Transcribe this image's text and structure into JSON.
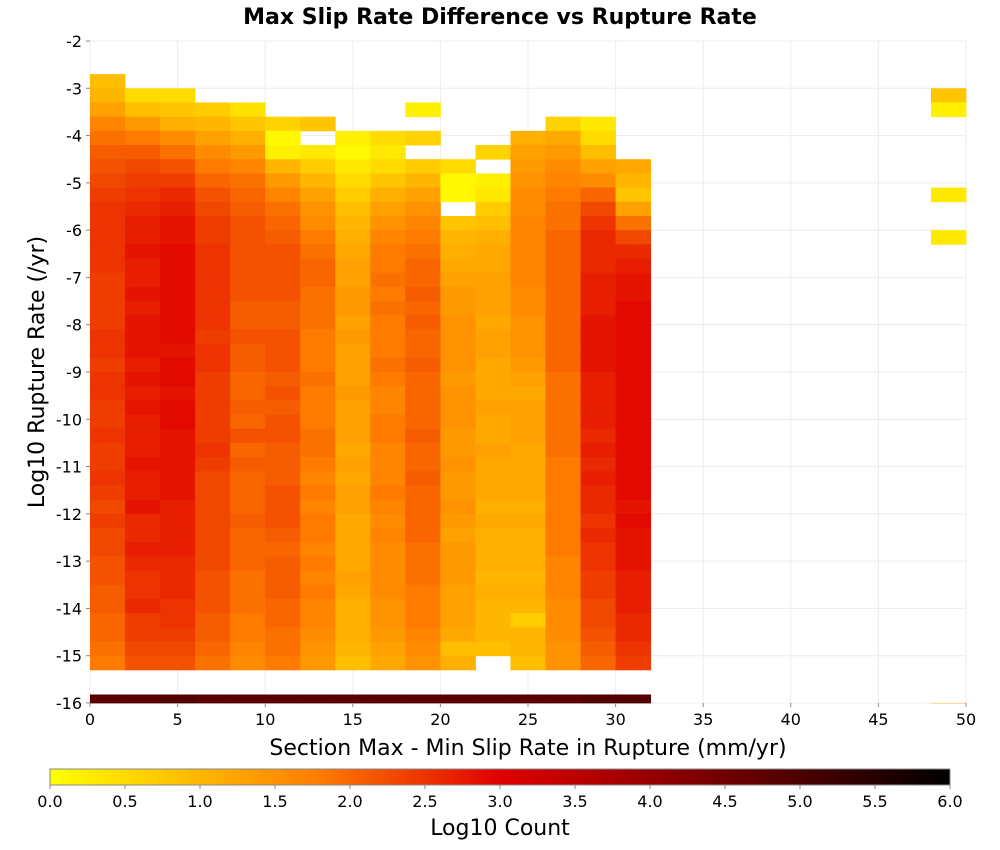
{
  "chart_data": {
    "type": "heatmap",
    "title": "Max Slip Rate Difference vs Rupture Rate",
    "xlabel": "Section Max - Min Slip Rate in Rupture (mm/yr)",
    "ylabel": "Log10 Rupture Rate (/yr)",
    "xlim": [
      0,
      50
    ],
    "ylim": [
      -16,
      -2
    ],
    "x_ticks": [
      0,
      5,
      10,
      15,
      20,
      25,
      30,
      35,
      40,
      45,
      50
    ],
    "y_ticks": [
      -2,
      -3,
      -4,
      -5,
      -6,
      -7,
      -8,
      -9,
      -10,
      -11,
      -12,
      -13,
      -14,
      -15,
      -16
    ],
    "x_bin_width": 2,
    "y_bin_height": 0.3,
    "grid": true,
    "colorbar": {
      "label": "Log10 Count",
      "min": 0.0,
      "max": 6.0,
      "ticks": [
        "0.0",
        "0.5",
        "1.0",
        "1.5",
        "2.0",
        "2.5",
        "3.0",
        "3.5",
        "4.0",
        "4.5",
        "5.0",
        "5.5",
        "6.0"
      ],
      "colors": [
        "#ffff00",
        "#ff8000",
        "#e00000",
        "#000000"
      ]
    },
    "columns": [
      {
        "x": 0,
        "top": -2.7,
        "values": [
          0.9,
          1.0,
          1.3,
          1.7,
          1.9,
          2.1,
          2.2,
          2.3,
          2.4,
          2.5,
          2.5,
          2.5,
          2.5,
          2.5,
          2.4,
          2.4,
          2.4,
          2.4,
          2.5,
          2.5,
          2.4,
          2.5,
          2.5,
          2.4,
          2.4,
          2.5,
          2.4,
          2.4,
          2.5,
          2.4,
          2.3,
          2.4,
          2.3,
          2.3,
          2.2,
          2.2,
          2.1,
          2.1,
          2.0,
          2.0,
          1.9,
          1.8,
          4.8
        ]
      },
      {
        "x": 2,
        "top": -3.0,
        "values": [
          0.5,
          0.9,
          1.4,
          1.8,
          2.1,
          2.3,
          2.4,
          2.5,
          2.6,
          2.7,
          2.7,
          2.8,
          2.7,
          2.7,
          2.8,
          2.7,
          2.8,
          2.8,
          2.8,
          2.7,
          2.8,
          2.7,
          2.8,
          2.7,
          2.7,
          2.7,
          2.8,
          2.7,
          2.7,
          2.8,
          2.6,
          2.6,
          2.7,
          2.6,
          2.5,
          2.5,
          2.6,
          2.4,
          2.4,
          2.3,
          2.2,
          4.8
        ]
      },
      {
        "x": 4,
        "top": -3.0,
        "values": [
          0.5,
          0.8,
          1.1,
          1.6,
          1.9,
          2.2,
          2.4,
          2.6,
          2.7,
          2.8,
          2.8,
          2.9,
          2.9,
          2.9,
          2.9,
          2.9,
          2.9,
          2.9,
          2.8,
          2.9,
          2.9,
          2.8,
          2.9,
          2.9,
          2.8,
          2.8,
          2.8,
          2.8,
          2.8,
          2.7,
          2.7,
          2.7,
          2.7,
          2.6,
          2.6,
          2.6,
          2.5,
          2.5,
          2.4,
          2.3,
          2.2,
          4.9
        ]
      },
      {
        "x": 6,
        "top": -3.3,
        "values": [
          0.7,
          1.0,
          1.3,
          1.6,
          1.8,
          2.0,
          2.2,
          2.3,
          2.4,
          2.4,
          2.5,
          2.5,
          2.5,
          2.5,
          2.5,
          2.5,
          2.4,
          2.5,
          2.5,
          2.4,
          2.4,
          2.4,
          2.4,
          2.4,
          2.5,
          2.4,
          2.3,
          2.3,
          2.3,
          2.3,
          2.3,
          2.3,
          2.3,
          2.2,
          2.2,
          2.2,
          2.1,
          2.1,
          2.0,
          1.9,
          4.8
        ]
      },
      {
        "x": 8,
        "top": -3.3,
        "values": [
          0.4,
          0.8,
          1.1,
          1.4,
          1.7,
          1.9,
          2.0,
          2.1,
          2.2,
          2.2,
          2.2,
          2.2,
          2.2,
          2.2,
          2.1,
          2.1,
          2.2,
          2.1,
          2.1,
          2.0,
          2.0,
          2.1,
          2.0,
          2.2,
          2.0,
          2.1,
          2.0,
          2.0,
          2.0,
          2.1,
          2.0,
          2.0,
          2.0,
          1.9,
          1.9,
          1.9,
          1.8,
          1.8,
          1.7,
          1.6,
          4.8
        ]
      },
      {
        "x": 10,
        "top": -3.6,
        "values": [
          0.6,
          0.1,
          0.2,
          1.0,
          1.4,
          1.7,
          1.9,
          2.0,
          2.1,
          2.2,
          2.2,
          2.2,
          2.2,
          2.1,
          2.1,
          2.2,
          2.2,
          2.2,
          2.1,
          2.2,
          2.1,
          2.2,
          2.2,
          2.1,
          2.1,
          2.1,
          2.2,
          2.2,
          2.2,
          2.1,
          2.0,
          2.1,
          2.1,
          2.1,
          2.0,
          2.0,
          1.9,
          1.9,
          1.8,
          4.8
        ]
      },
      {
        "x": 12,
        "top": -3.6,
        "values": [
          0.8,
          null,
          0.3,
          0.7,
          1.0,
          1.3,
          1.5,
          1.6,
          1.8,
          1.9,
          2.0,
          2.0,
          1.9,
          1.9,
          1.9,
          1.8,
          1.8,
          1.8,
          1.9,
          1.8,
          1.8,
          1.8,
          1.9,
          1.9,
          1.8,
          1.7,
          1.8,
          1.7,
          1.8,
          1.8,
          1.7,
          1.8,
          1.7,
          1.8,
          1.7,
          1.7,
          1.6,
          1.5,
          1.4,
          4.8
        ]
      },
      {
        "x": 14,
        "top": -3.9,
        "values": [
          0.2,
          0.1,
          0.3,
          0.5,
          0.7,
          0.9,
          1.0,
          1.1,
          1.2,
          1.3,
          1.3,
          1.4,
          1.4,
          1.3,
          1.4,
          1.3,
          1.3,
          1.3,
          1.4,
          1.3,
          1.3,
          1.3,
          1.2,
          1.3,
          1.2,
          1.3,
          1.3,
          1.2,
          1.2,
          1.2,
          1.2,
          1.3,
          1.2,
          1.1,
          1.1,
          1.1,
          1.0,
          0.9,
          4.8
        ]
      },
      {
        "x": 16,
        "top": -3.9,
        "values": [
          0.5,
          0.3,
          0.5,
          0.8,
          1.1,
          1.3,
          1.5,
          1.7,
          1.8,
          1.8,
          1.9,
          1.8,
          1.9,
          1.8,
          1.8,
          1.8,
          1.9,
          1.8,
          1.7,
          1.7,
          1.8,
          1.8,
          1.7,
          1.7,
          1.7,
          1.8,
          1.7,
          1.6,
          1.7,
          1.6,
          1.6,
          1.6,
          1.6,
          1.5,
          1.5,
          1.4,
          1.3,
          1.2,
          4.8
        ]
      },
      {
        "x": 18,
        "top": -3.3,
        "values": [
          0.2,
          null,
          0.6,
          null,
          0.7,
          1.0,
          1.3,
          1.5,
          1.7,
          1.8,
          1.9,
          2.0,
          2.0,
          2.1,
          2.0,
          2.1,
          2.0,
          2.0,
          2.1,
          2.0,
          2.0,
          2.0,
          2.0,
          2.1,
          2.0,
          2.0,
          2.1,
          2.0,
          2.0,
          2.0,
          2.0,
          1.9,
          1.9,
          1.9,
          1.8,
          1.8,
          1.8,
          1.7,
          1.6,
          1.5,
          4.8
        ]
      },
      {
        "x": 20,
        "top": -4.5,
        "values": [
          0.5,
          0.1,
          0.1,
          null,
          0.8,
          1.0,
          1.1,
          1.2,
          1.3,
          1.4,
          1.4,
          1.5,
          1.5,
          1.5,
          1.5,
          1.4,
          1.5,
          1.5,
          1.5,
          1.4,
          1.4,
          1.5,
          1.4,
          1.4,
          1.5,
          1.4,
          1.3,
          1.4,
          1.4,
          1.4,
          1.3,
          1.3,
          1.3,
          1.2,
          0.9,
          1.1,
          4.8
        ]
      },
      {
        "x": 22,
        "top": -4.2,
        "values": [
          0.6,
          null,
          0.2,
          0.3,
          0.7,
          0.9,
          1.1,
          1.2,
          1.2,
          1.3,
          1.3,
          1.3,
          1.2,
          1.3,
          1.3,
          1.2,
          1.2,
          1.2,
          1.3,
          1.2,
          1.2,
          1.3,
          1.2,
          1.2,
          1.2,
          1.1,
          1.2,
          1.1,
          1.1,
          1.1,
          1.0,
          1.1,
          1.0,
          1.0,
          1.0,
          0.9,
          4.8
        ]
      },
      {
        "x": 24,
        "top": -3.9,
        "values": [
          1.1,
          1.3,
          1.4,
          1.5,
          1.6,
          1.6,
          1.7,
          1.7,
          1.7,
          1.7,
          1.7,
          1.6,
          1.6,
          1.5,
          1.5,
          1.5,
          1.4,
          1.3,
          1.2,
          1.3,
          1.3,
          1.3,
          1.2,
          1.2,
          1.2,
          1.2,
          1.1,
          1.2,
          1.1,
          1.1,
          1.1,
          1.0,
          1.1,
          1.0,
          0.7,
          1.0,
          1.0,
          0.9,
          4.8
        ]
      },
      {
        "x": 26,
        "top": -3.6,
        "values": [
          0.6,
          1.2,
          1.4,
          1.6,
          1.7,
          1.8,
          1.9,
          1.9,
          2.0,
          2.0,
          2.0,
          2.0,
          2.0,
          2.0,
          2.0,
          2.0,
          2.0,
          2.0,
          1.9,
          1.9,
          1.9,
          1.9,
          1.9,
          1.9,
          1.8,
          1.8,
          1.8,
          1.8,
          1.8,
          1.8,
          1.8,
          1.7,
          1.7,
          1.7,
          1.6,
          1.6,
          1.6,
          1.5,
          1.5,
          4.8
        ]
      },
      {
        "x": 28,
        "top": -3.6,
        "values": [
          0.3,
          0.5,
          0.9,
          1.3,
          1.6,
          2.0,
          2.3,
          2.5,
          2.6,
          2.6,
          2.6,
          2.7,
          2.7,
          2.7,
          2.8,
          2.8,
          2.8,
          2.8,
          2.7,
          2.7,
          2.7,
          2.7,
          2.6,
          2.7,
          2.6,
          2.7,
          2.6,
          2.6,
          2.5,
          2.6,
          2.5,
          2.5,
          2.4,
          2.4,
          2.3,
          2.3,
          2.2,
          2.1,
          2.0,
          4.9
        ]
      },
      {
        "x": 30,
        "top": -4.5,
        "values": [
          1.2,
          1.0,
          0.8,
          1.3,
          1.9,
          2.3,
          2.6,
          2.7,
          2.8,
          2.8,
          2.9,
          2.9,
          2.9,
          2.9,
          2.9,
          2.9,
          2.9,
          2.9,
          2.9,
          2.9,
          2.9,
          2.9,
          2.9,
          2.9,
          2.8,
          2.9,
          2.8,
          2.8,
          2.8,
          2.7,
          2.7,
          2.7,
          2.6,
          2.6,
          2.5,
          2.4,
          4.9
        ]
      },
      {
        "x": 48,
        "bins": [
          {
            "y": -3.0,
            "v": 0.8
          },
          {
            "y": -3.3,
            "v": 0.2
          },
          {
            "y": -5.1,
            "v": 0.3
          },
          {
            "y": -6.0,
            "v": 0.3
          },
          {
            "y": -16.0,
            "v": 1.1
          }
        ]
      }
    ]
  }
}
